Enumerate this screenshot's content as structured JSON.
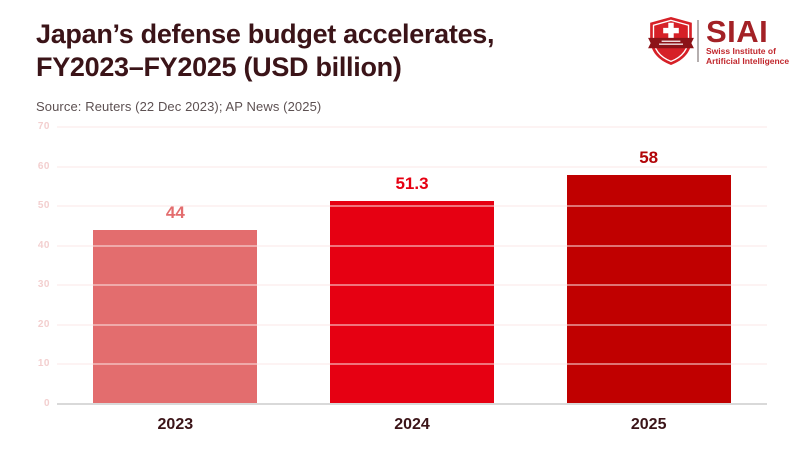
{
  "header": {
    "title_line1": "Japan’s defense budget accelerates,",
    "title_line2": "FY2023–FY2025 (USD billion)",
    "source": "Source: Reuters (22 Dec 2023); AP News (2025)"
  },
  "logo": {
    "name": "SIAI",
    "sub_line1": "Swiss Institute of",
    "sub_line2": "Artificial Intelligence",
    "shield_color": "#d62027",
    "ribbon_color": "#8c1318",
    "text_color": "#a32126",
    "sub_text_color": "#c1272d"
  },
  "chart_data": {
    "type": "bar",
    "title": "Japan’s defense budget accelerates, FY2023–FY2025 (USD billion)",
    "categories": [
      "2023",
      "2024",
      "2025"
    ],
    "values": [
      44,
      51.3,
      58
    ],
    "value_labels": [
      "44",
      "51.3",
      "58"
    ],
    "bar_colors": [
      "#e36d6e",
      "#e60012",
      "#c00000"
    ],
    "label_colors": [
      "#e36d6e",
      "#e60012",
      "#b20508"
    ],
    "xlabel": "",
    "ylabel": "",
    "ylim": [
      0,
      70
    ],
    "yticks": [
      0,
      10,
      20,
      30,
      40,
      50,
      60,
      70
    ],
    "grid": true,
    "legend": false,
    "gridline_color": "#fbe7e7",
    "baseline_color": "#d9d9d9",
    "tick_color": "#f3cfcf",
    "category_label_color": "#3b1418"
  }
}
